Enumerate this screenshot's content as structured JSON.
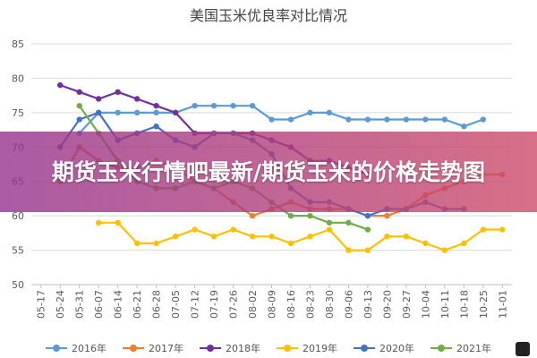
{
  "banner": {
    "text": "期货玉米行情吧最新/期货玉米的价格走势图"
  },
  "chart_data": {
    "type": "line",
    "title": "美国玉米优良率对比情况",
    "xlabel": "",
    "ylabel": "",
    "ylim": [
      50,
      85
    ],
    "yticks": [
      50,
      55,
      60,
      65,
      70,
      75,
      80,
      85
    ],
    "grid": true,
    "legend_position": "bottom",
    "categories": [
      "05-17",
      "05-24",
      "05-31",
      "06-07",
      "06-14",
      "06-21",
      "06-28",
      "07-05",
      "07-12",
      "07-19",
      "07-26",
      "08-02",
      "08-09",
      "08-16",
      "08-23",
      "08-30",
      "09-06",
      "09-13",
      "09-20",
      "09-27",
      "10-04",
      "10-11",
      "10-18",
      "10-25",
      "11-01"
    ],
    "series": [
      {
        "name": "2016年",
        "color": "#5b9bd5",
        "values": [
          null,
          null,
          72,
          75,
          75,
          75,
          75,
          75,
          76,
          76,
          76,
          76,
          74,
          74,
          75,
          75,
          74,
          74,
          74,
          74,
          74,
          74,
          73,
          74,
          null
        ]
      },
      {
        "name": "2017年",
        "color": "#ed7d31",
        "values": [
          null,
          65,
          70,
          68,
          67,
          67,
          68,
          67,
          65,
          64,
          62,
          60,
          61,
          62,
          61,
          61,
          61,
          60,
          60,
          61,
          63,
          64,
          65,
          66,
          66
        ]
      },
      {
        "name": "2018年",
        "color": "#7030a0",
        "values": [
          null,
          79,
          78,
          77,
          78,
          77,
          76,
          75,
          72,
          72,
          72,
          72,
          71,
          70,
          68,
          68,
          67,
          66,
          null,
          null,
          null,
          null,
          null,
          null,
          null
        ]
      },
      {
        "name": "2019年",
        "color": "#ffc000",
        "values": [
          null,
          null,
          null,
          59,
          59,
          56,
          56,
          57,
          58,
          57,
          58,
          57,
          57,
          56,
          57,
          58,
          55,
          55,
          57,
          57,
          56,
          55,
          56,
          58,
          58
        ]
      },
      {
        "name": "2020年",
        "color": "#4472c4",
        "values": [
          null,
          70,
          74,
          75,
          71,
          72,
          73,
          71,
          70,
          72,
          72,
          71,
          69,
          64,
          62,
          62,
          61,
          60,
          61,
          61,
          62,
          61,
          61,
          null,
          null
        ]
      },
      {
        "name": "2021年",
        "color": "#70ad47",
        "values": [
          null,
          null,
          76,
          72,
          68,
          65,
          64,
          64,
          65,
          64,
          65,
          64,
          62,
          60,
          60,
          59,
          59,
          58,
          null,
          null,
          null,
          null,
          null,
          null,
          null
        ]
      }
    ]
  }
}
